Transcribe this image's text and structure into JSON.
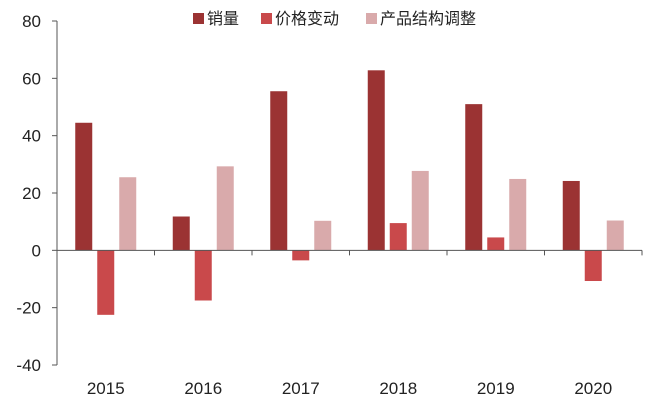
{
  "chart_data": {
    "type": "bar",
    "title": "",
    "xlabel": "",
    "ylabel": "",
    "categories": [
      "2015",
      "2016",
      "2017",
      "2018",
      "2019",
      "2020"
    ],
    "series": [
      {
        "name": "销量",
        "color": "#9b3333",
        "values": [
          44.5,
          11.8,
          55.5,
          62.8,
          51.0,
          24.2
        ]
      },
      {
        "name": "价格变动",
        "color": "#c9494b",
        "values": [
          -22.5,
          -17.5,
          -3.5,
          9.5,
          4.5,
          -10.7
        ]
      },
      {
        "name": "产品结构调整",
        "color": "#d9aaab",
        "values": [
          25.5,
          29.3,
          10.3,
          27.7,
          24.9,
          10.4
        ]
      }
    ],
    "ylim": [
      -40,
      80
    ],
    "yticks": [
      -40,
      -20,
      0,
      20,
      40,
      60,
      80
    ],
    "grid": false,
    "legend_position": "top"
  }
}
